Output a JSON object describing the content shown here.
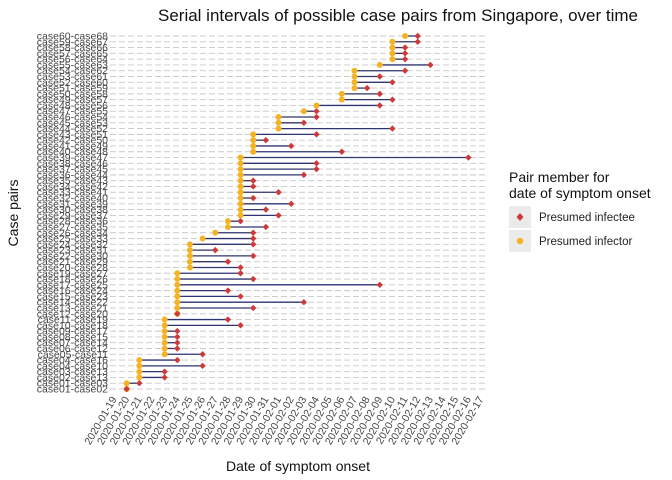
{
  "chart_data": {
    "type": "scatter",
    "title": "Serial intervals of possible case pairs from Singapore, over time",
    "xlabel": "Date of symptom onset",
    "ylabel": "Case pairs",
    "grid": "horizontal dashed",
    "legend": {
      "title_line1": "Pair member for",
      "title_line2": "date of symptom onset",
      "placement": "right",
      "items": [
        {
          "label": "Presumed infectee",
          "color": "#cc3a3a",
          "shape": "diamond"
        },
        {
          "label": "Presumed infector",
          "color": "#f5b324",
          "shape": "circle"
        }
      ]
    },
    "segment_color": "#2f3570",
    "x_ticks": [
      "2020-01-19",
      "2020-01-20",
      "2020-01-21",
      "2020-01-22",
      "2020-01-23",
      "2020-01-24",
      "2020-01-25",
      "2020-01-26",
      "2020-01-27",
      "2020-01-28",
      "2020-01-29",
      "2020-01-30",
      "2020-01-31",
      "2020-02-01",
      "2020-02-02",
      "2020-02-03",
      "2020-02-04",
      "2020-02-05",
      "2020-02-06",
      "2020-02-07",
      "2020-02-08",
      "2020-02-09",
      "2020-02-10",
      "2020-02-11",
      "2020-02-12",
      "2020-02-13",
      "2020-02-14",
      "2020-02-15",
      "2020-02-16",
      "2020-02-17"
    ],
    "pairs": [
      {
        "label": "case01-case02",
        "infector": "2020-01-20",
        "infectee": "2020-01-20"
      },
      {
        "label": "case01-case03",
        "infector": "2020-01-20",
        "infectee": "2020-01-21"
      },
      {
        "label": "case02-case13",
        "infector": "2020-01-21",
        "infectee": "2020-01-23"
      },
      {
        "label": "case03-case13",
        "infector": "2020-01-21",
        "infectee": "2020-01-23"
      },
      {
        "label": "case04-case10",
        "infector": "2020-01-21",
        "infectee": "2020-01-26"
      },
      {
        "label": "case04-case16",
        "infector": "2020-01-21",
        "infectee": "2020-01-24"
      },
      {
        "label": "case05-case11",
        "infector": "2020-01-23",
        "infectee": "2020-01-26"
      },
      {
        "label": "case06-case12",
        "infector": "2020-01-23",
        "infectee": "2020-01-24"
      },
      {
        "label": "case07-case14",
        "infector": "2020-01-23",
        "infectee": "2020-01-24"
      },
      {
        "label": "case08-case15",
        "infector": "2020-01-23",
        "infectee": "2020-01-24"
      },
      {
        "label": "case09-case17",
        "infector": "2020-01-23",
        "infectee": "2020-01-24"
      },
      {
        "label": "case10-case18",
        "infector": "2020-01-23",
        "infectee": "2020-01-29"
      },
      {
        "label": "case11-case19",
        "infector": "2020-01-23",
        "infectee": "2020-01-28"
      },
      {
        "label": "case12-case20",
        "infector": "2020-01-24",
        "infectee": "2020-01-24"
      },
      {
        "label": "case13-case21",
        "infector": "2020-01-24",
        "infectee": "2020-01-30"
      },
      {
        "label": "case14-case22",
        "infector": "2020-01-24",
        "infectee": "2020-02-03"
      },
      {
        "label": "case15-case23",
        "infector": "2020-01-24",
        "infectee": "2020-01-29"
      },
      {
        "label": "case16-case24",
        "infector": "2020-01-24",
        "infectee": "2020-01-28"
      },
      {
        "label": "case17-case25",
        "infector": "2020-01-24",
        "infectee": "2020-02-09"
      },
      {
        "label": "case18-case26",
        "infector": "2020-01-24",
        "infectee": "2020-01-30"
      },
      {
        "label": "case19-case27",
        "infector": "2020-01-24",
        "infectee": "2020-01-29"
      },
      {
        "label": "case20-case28",
        "infector": "2020-01-25",
        "infectee": "2020-01-29"
      },
      {
        "label": "case21-case29",
        "infector": "2020-01-25",
        "infectee": "2020-01-28"
      },
      {
        "label": "case22-case30",
        "infector": "2020-01-25",
        "infectee": "2020-01-30"
      },
      {
        "label": "case23-case31",
        "infector": "2020-01-25",
        "infectee": "2020-01-27"
      },
      {
        "label": "case24-case32",
        "infector": "2020-01-25",
        "infectee": "2020-01-30"
      },
      {
        "label": "case25-case33",
        "infector": "2020-01-26",
        "infectee": "2020-01-30"
      },
      {
        "label": "case26-case34",
        "infector": "2020-01-27",
        "infectee": "2020-01-30"
      },
      {
        "label": "case27-case35",
        "infector": "2020-01-28",
        "infectee": "2020-01-31"
      },
      {
        "label": "case28-case36",
        "infector": "2020-01-28",
        "infectee": "2020-01-29"
      },
      {
        "label": "case29-case37",
        "infector": "2020-01-29",
        "infectee": "2020-02-01"
      },
      {
        "label": "case30-case38",
        "infector": "2020-01-29",
        "infectee": "2020-01-31"
      },
      {
        "label": "case31-case39",
        "infector": "2020-01-29",
        "infectee": "2020-02-02"
      },
      {
        "label": "case32-case40",
        "infector": "2020-01-29",
        "infectee": "2020-01-30"
      },
      {
        "label": "case33-case41",
        "infector": "2020-01-29",
        "infectee": "2020-02-01"
      },
      {
        "label": "case34-case42",
        "infector": "2020-01-29",
        "infectee": "2020-01-30"
      },
      {
        "label": "case35-case43",
        "infector": "2020-01-29",
        "infectee": "2020-01-30"
      },
      {
        "label": "case36-case44",
        "infector": "2020-01-29",
        "infectee": "2020-02-03"
      },
      {
        "label": "case37-case45",
        "infector": "2020-01-29",
        "infectee": "2020-02-04"
      },
      {
        "label": "case38-case46",
        "infector": "2020-01-29",
        "infectee": "2020-02-04"
      },
      {
        "label": "case39-case47",
        "infector": "2020-01-29",
        "infectee": "2020-02-16"
      },
      {
        "label": "case40-case48",
        "infector": "2020-01-30",
        "infectee": "2020-02-06"
      },
      {
        "label": "case41-case49",
        "infector": "2020-01-30",
        "infectee": "2020-02-02"
      },
      {
        "label": "case42-case50",
        "infector": "2020-01-30",
        "infectee": "2020-01-31"
      },
      {
        "label": "case43-case51",
        "infector": "2020-01-30",
        "infectee": "2020-02-04"
      },
      {
        "label": "case44-case52",
        "infector": "2020-02-01",
        "infectee": "2020-02-10"
      },
      {
        "label": "case45-case53",
        "infector": "2020-02-01",
        "infectee": "2020-02-03"
      },
      {
        "label": "case46-case54",
        "infector": "2020-02-01",
        "infectee": "2020-02-04"
      },
      {
        "label": "case47-case55",
        "infector": "2020-02-03",
        "infectee": "2020-02-04"
      },
      {
        "label": "case48-case56",
        "infector": "2020-02-04",
        "infectee": "2020-02-09"
      },
      {
        "label": "case49-case57",
        "infector": "2020-02-06",
        "infectee": "2020-02-10"
      },
      {
        "label": "case50-case58",
        "infector": "2020-02-06",
        "infectee": "2020-02-09"
      },
      {
        "label": "case51-case59",
        "infector": "2020-02-07",
        "infectee": "2020-02-08"
      },
      {
        "label": "case52-case60",
        "infector": "2020-02-07",
        "infectee": "2020-02-10"
      },
      {
        "label": "case53-case61",
        "infector": "2020-02-07",
        "infectee": "2020-02-09"
      },
      {
        "label": "case54-case62",
        "infector": "2020-02-07",
        "infectee": "2020-02-11"
      },
      {
        "label": "case55-case63",
        "infector": "2020-02-09",
        "infectee": "2020-02-13"
      },
      {
        "label": "case56-case64",
        "infector": "2020-02-10",
        "infectee": "2020-02-11"
      },
      {
        "label": "case57-case65",
        "infector": "2020-02-10",
        "infectee": "2020-02-11"
      },
      {
        "label": "case58-case66",
        "infector": "2020-02-10",
        "infectee": "2020-02-11"
      },
      {
        "label": "case59-case67",
        "infector": "2020-02-10",
        "infectee": "2020-02-12"
      },
      {
        "label": "case60-case68",
        "infector": "2020-02-11",
        "infectee": "2020-02-12"
      }
    ]
  }
}
